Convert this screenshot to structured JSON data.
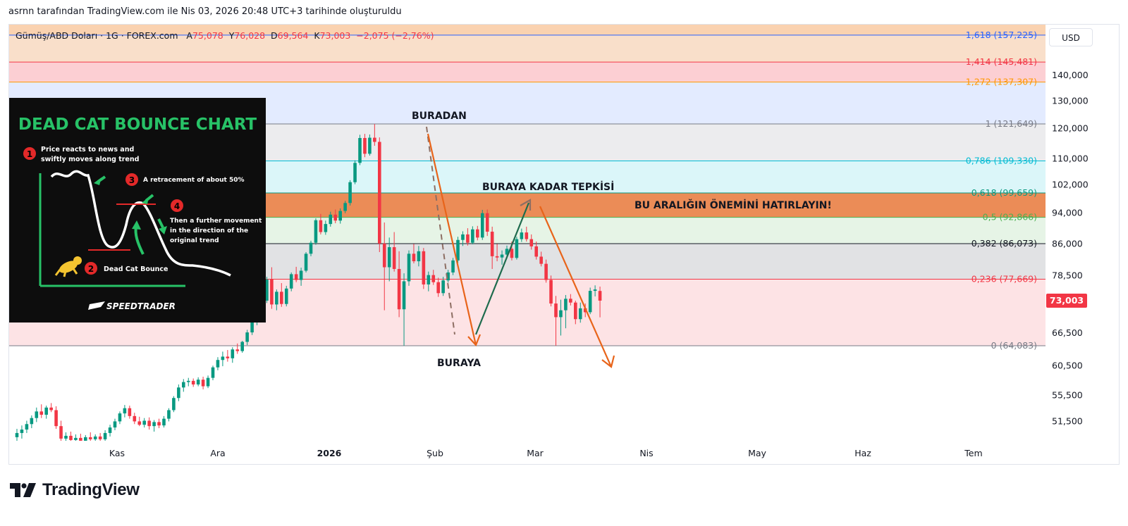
{
  "caption": "asrnn tarafından TradingView.com ile Nis 03, 2026 20:48 UTC+3 tarihinde oluşturuldu",
  "brand": "TradingView",
  "currency_button": "USD",
  "legend": {
    "symbol": "Gümüş/ABD Doları · 1G · FOREX.com",
    "open_label": "A",
    "open": "75,078",
    "high_label": "Y",
    "high": "76,028",
    "low_label": "D",
    "low": "69,564",
    "close_label": "K",
    "close": "73,003",
    "change": "−2,075 (−2,76%)"
  },
  "last_price": "73,003",
  "annotations": {
    "top": "BURADAN",
    "bottom": "BURAYA",
    "reaction": "BURAYA KADAR TEPKİSİ",
    "zone": "BU ARALIĞIN ÖNEMİNİ HATIRLAYIN!"
  },
  "inset": {
    "title": "DEAD CAT BOUNCE CHART",
    "step1": [
      "Price reacts to news and",
      "swiftly moves along trend"
    ],
    "step2": "Dead Cat Bounce",
    "step3": "A retracement of about 50%",
    "step4": [
      "Then a further movement",
      "in the direction of the",
      "original trend"
    ],
    "logo": "SPEEDTRADER",
    "numbers": [
      "1",
      "2",
      "3",
      "4"
    ]
  },
  "chart_data": {
    "type": "candlestick",
    "symbol": "Gümüş/ABD Doları",
    "interval": "1G",
    "y_axis_ticks": [
      "140,000",
      "130,000",
      "120,000",
      "110,000",
      "102,000",
      "94,000",
      "86,000",
      "78,500",
      "66,500",
      "60,500",
      "55,500",
      "51,500"
    ],
    "y_axis_scale": "log",
    "x_axis_ticks": [
      "Kas",
      "Ara",
      "2026",
      "Şub",
      "Mar",
      "Nis",
      "May",
      "Haz",
      "Tem"
    ],
    "fib_levels": [
      {
        "label": "0 (64,083)",
        "value": 64083,
        "color": "#787b86"
      },
      {
        "label": "0,236 (77,669)",
        "value": 77669,
        "color": "#f23645"
      },
      {
        "label": "0,382 (86,073)",
        "value": 86073,
        "color": "#131722"
      },
      {
        "label": "0,5 (92,866)",
        "value": 92866,
        "color": "#4caf50"
      },
      {
        "label": "0,618 (99,659)",
        "value": 99659,
        "color": "#089981"
      },
      {
        "label": "0,786 (109,330)",
        "value": 109330,
        "color": "#00bcd4"
      },
      {
        "label": "1 (121,649)",
        "value": 121649,
        "color": "#787b86"
      },
      {
        "label": "1,272 (137,307)",
        "value": 137307,
        "color": "#ff9800"
      },
      {
        "label": "1,414 (145,481)",
        "value": 145481,
        "color": "#f23645"
      },
      {
        "label": "1,618 (157,225)",
        "value": 157225,
        "color": "#2962ff"
      }
    ],
    "candles": [
      {
        "o": 49.2,
        "h": 50.4,
        "l": 48.6,
        "c": 49.8
      },
      {
        "o": 49.8,
        "h": 50.9,
        "l": 49.0,
        "c": 50.3
      },
      {
        "o": 50.3,
        "h": 51.6,
        "l": 49.8,
        "c": 51.1
      },
      {
        "o": 51.1,
        "h": 52.4,
        "l": 50.5,
        "c": 52.0
      },
      {
        "o": 52.0,
        "h": 53.6,
        "l": 51.4,
        "c": 53.0
      },
      {
        "o": 53.0,
        "h": 54.1,
        "l": 52.0,
        "c": 52.5
      },
      {
        "o": 52.5,
        "h": 53.9,
        "l": 51.9,
        "c": 53.6
      },
      {
        "o": 53.6,
        "h": 54.3,
        "l": 52.9,
        "c": 53.2
      },
      {
        "o": 53.2,
        "h": 53.8,
        "l": 50.4,
        "c": 50.8
      },
      {
        "o": 50.8,
        "h": 51.6,
        "l": 48.6,
        "c": 49.0
      },
      {
        "o": 49.0,
        "h": 49.9,
        "l": 48.2,
        "c": 49.4
      },
      {
        "o": 49.4,
        "h": 50.0,
        "l": 48.4,
        "c": 48.8
      },
      {
        "o": 48.8,
        "h": 49.6,
        "l": 48.1,
        "c": 49.1
      },
      {
        "o": 49.1,
        "h": 49.7,
        "l": 48.3,
        "c": 48.7
      },
      {
        "o": 48.7,
        "h": 49.5,
        "l": 48.0,
        "c": 49.2
      },
      {
        "o": 49.2,
        "h": 49.9,
        "l": 48.5,
        "c": 48.9
      },
      {
        "o": 48.9,
        "h": 49.6,
        "l": 48.2,
        "c": 49.3
      },
      {
        "o": 49.3,
        "h": 49.8,
        "l": 48.6,
        "c": 48.9
      },
      {
        "o": 48.9,
        "h": 50.2,
        "l": 48.4,
        "c": 49.8
      },
      {
        "o": 49.8,
        "h": 51.0,
        "l": 49.3,
        "c": 50.6
      },
      {
        "o": 50.6,
        "h": 51.9,
        "l": 50.2,
        "c": 51.5
      },
      {
        "o": 51.5,
        "h": 53.0,
        "l": 51.1,
        "c": 52.7
      },
      {
        "o": 52.7,
        "h": 54.0,
        "l": 52.1,
        "c": 53.5
      },
      {
        "o": 53.5,
        "h": 53.9,
        "l": 51.9,
        "c": 52.3
      },
      {
        "o": 52.3,
        "h": 52.8,
        "l": 51.1,
        "c": 51.5
      },
      {
        "o": 51.5,
        "h": 52.2,
        "l": 50.8,
        "c": 51.0
      },
      {
        "o": 51.0,
        "h": 52.0,
        "l": 50.6,
        "c": 51.6
      },
      {
        "o": 51.6,
        "h": 52.1,
        "l": 50.3,
        "c": 50.8
      },
      {
        "o": 50.8,
        "h": 51.7,
        "l": 50.0,
        "c": 51.4
      },
      {
        "o": 51.4,
        "h": 51.9,
        "l": 50.5,
        "c": 50.9
      },
      {
        "o": 50.9,
        "h": 52.3,
        "l": 50.6,
        "c": 51.9
      },
      {
        "o": 51.9,
        "h": 53.5,
        "l": 51.5,
        "c": 53.2
      },
      {
        "o": 53.2,
        "h": 55.4,
        "l": 52.9,
        "c": 55.1
      },
      {
        "o": 55.1,
        "h": 57.3,
        "l": 54.6,
        "c": 56.8
      },
      {
        "o": 56.8,
        "h": 58.2,
        "l": 56.1,
        "c": 57.7
      },
      {
        "o": 57.7,
        "h": 58.4,
        "l": 57.0,
        "c": 57.9
      },
      {
        "o": 57.9,
        "h": 58.3,
        "l": 56.9,
        "c": 57.3
      },
      {
        "o": 57.3,
        "h": 58.5,
        "l": 57.0,
        "c": 58.1
      },
      {
        "o": 58.1,
        "h": 58.6,
        "l": 56.5,
        "c": 57.0
      },
      {
        "o": 57.0,
        "h": 58.8,
        "l": 56.7,
        "c": 58.4
      },
      {
        "o": 58.4,
        "h": 60.5,
        "l": 58.0,
        "c": 60.2
      },
      {
        "o": 60.2,
        "h": 62.0,
        "l": 59.7,
        "c": 61.5
      },
      {
        "o": 61.5,
        "h": 63.0,
        "l": 60.4,
        "c": 62.1
      },
      {
        "o": 62.1,
        "h": 63.3,
        "l": 61.2,
        "c": 61.8
      },
      {
        "o": 61.8,
        "h": 63.8,
        "l": 61.0,
        "c": 63.4
      },
      {
        "o": 63.4,
        "h": 64.5,
        "l": 62.6,
        "c": 63.1
      },
      {
        "o": 63.1,
        "h": 65.0,
        "l": 62.8,
        "c": 64.8
      },
      {
        "o": 64.8,
        "h": 67.1,
        "l": 64.2,
        "c": 66.6
      },
      {
        "o": 66.6,
        "h": 69.2,
        "l": 66.1,
        "c": 68.7
      },
      {
        "o": 68.7,
        "h": 71.3,
        "l": 68.0,
        "c": 70.8
      },
      {
        "o": 70.8,
        "h": 73.5,
        "l": 70.0,
        "c": 73.0
      },
      {
        "o": 73.0,
        "h": 78.2,
        "l": 72.5,
        "c": 77.6
      },
      {
        "o": 77.6,
        "h": 80.4,
        "l": 71.3,
        "c": 72.2
      },
      {
        "o": 72.2,
        "h": 75.4,
        "l": 71.0,
        "c": 74.9
      },
      {
        "o": 74.9,
        "h": 76.8,
        "l": 71.7,
        "c": 72.3
      },
      {
        "o": 72.3,
        "h": 76.2,
        "l": 71.8,
        "c": 75.6
      },
      {
        "o": 75.6,
        "h": 79.2,
        "l": 75.0,
        "c": 78.8
      },
      {
        "o": 78.8,
        "h": 80.5,
        "l": 77.0,
        "c": 77.5
      },
      {
        "o": 77.5,
        "h": 80.3,
        "l": 76.2,
        "c": 79.6
      },
      {
        "o": 79.6,
        "h": 84.0,
        "l": 79.2,
        "c": 83.6
      },
      {
        "o": 83.6,
        "h": 86.8,
        "l": 83.0,
        "c": 86.3
      },
      {
        "o": 86.3,
        "h": 92.6,
        "l": 85.8,
        "c": 92.1
      },
      {
        "o": 92.1,
        "h": 93.8,
        "l": 88.4,
        "c": 89.0
      },
      {
        "o": 89.0,
        "h": 92.0,
        "l": 88.3,
        "c": 91.1
      },
      {
        "o": 91.1,
        "h": 94.4,
        "l": 90.4,
        "c": 93.6
      },
      {
        "o": 93.6,
        "h": 95.0,
        "l": 91.3,
        "c": 92.0
      },
      {
        "o": 92.0,
        "h": 95.3,
        "l": 91.2,
        "c": 94.6
      },
      {
        "o": 94.6,
        "h": 97.4,
        "l": 94.0,
        "c": 96.8
      },
      {
        "o": 96.8,
        "h": 103.4,
        "l": 96.1,
        "c": 102.8
      },
      {
        "o": 102.8,
        "h": 109.5,
        "l": 102.2,
        "c": 108.7
      },
      {
        "o": 108.7,
        "h": 117.9,
        "l": 108.0,
        "c": 116.8
      },
      {
        "o": 116.8,
        "h": 118.2,
        "l": 110.5,
        "c": 111.6
      },
      {
        "o": 111.6,
        "h": 118.0,
        "l": 111.0,
        "c": 116.9
      },
      {
        "o": 116.9,
        "h": 121.6,
        "l": 114.2,
        "c": 115.5
      },
      {
        "o": 115.5,
        "h": 117.0,
        "l": 84.0,
        "c": 86.1
      },
      {
        "o": 86.1,
        "h": 91.5,
        "l": 71.0,
        "c": 80.4
      },
      {
        "o": 80.4,
        "h": 87.6,
        "l": 77.2,
        "c": 85.2
      },
      {
        "o": 85.2,
        "h": 89.0,
        "l": 79.4,
        "c": 80.0
      },
      {
        "o": 80.0,
        "h": 84.2,
        "l": 69.6,
        "c": 71.2
      },
      {
        "o": 71.2,
        "h": 79.0,
        "l": 64.1,
        "c": 77.2
      },
      {
        "o": 77.2,
        "h": 84.4,
        "l": 76.2,
        "c": 83.6
      },
      {
        "o": 83.6,
        "h": 86.0,
        "l": 81.3,
        "c": 81.8
      },
      {
        "o": 81.8,
        "h": 85.5,
        "l": 80.6,
        "c": 84.2
      },
      {
        "o": 84.2,
        "h": 85.0,
        "l": 75.5,
        "c": 76.5
      },
      {
        "o": 76.5,
        "h": 79.4,
        "l": 75.0,
        "c": 78.6
      },
      {
        "o": 78.6,
        "h": 79.8,
        "l": 76.4,
        "c": 77.0
      },
      {
        "o": 77.0,
        "h": 78.0,
        "l": 73.8,
        "c": 74.6
      },
      {
        "o": 74.6,
        "h": 78.2,
        "l": 74.0,
        "c": 77.4
      },
      {
        "o": 77.4,
        "h": 79.8,
        "l": 76.9,
        "c": 79.2
      },
      {
        "o": 79.2,
        "h": 82.6,
        "l": 78.6,
        "c": 82.0
      },
      {
        "o": 82.0,
        "h": 87.8,
        "l": 81.4,
        "c": 87.0
      },
      {
        "o": 87.0,
        "h": 89.2,
        "l": 85.5,
        "c": 88.4
      },
      {
        "o": 88.4,
        "h": 90.0,
        "l": 85.6,
        "c": 86.3
      },
      {
        "o": 86.3,
        "h": 90.5,
        "l": 85.9,
        "c": 89.7
      },
      {
        "o": 89.7,
        "h": 90.6,
        "l": 86.9,
        "c": 87.6
      },
      {
        "o": 87.6,
        "h": 94.9,
        "l": 87.0,
        "c": 94.0
      },
      {
        "o": 94.0,
        "h": 95.0,
        "l": 88.0,
        "c": 89.1
      },
      {
        "o": 89.1,
        "h": 90.4,
        "l": 80.0,
        "c": 83.0
      },
      {
        "o": 83.0,
        "h": 86.0,
        "l": 81.8,
        "c": 82.7
      },
      {
        "o": 82.7,
        "h": 84.4,
        "l": 81.0,
        "c": 83.4
      },
      {
        "o": 83.4,
        "h": 85.6,
        "l": 82.6,
        "c": 84.8
      },
      {
        "o": 84.8,
        "h": 86.6,
        "l": 82.0,
        "c": 82.6
      },
      {
        "o": 82.6,
        "h": 87.8,
        "l": 82.2,
        "c": 87.2
      },
      {
        "o": 87.2,
        "h": 89.9,
        "l": 86.5,
        "c": 88.9
      },
      {
        "o": 88.9,
        "h": 90.4,
        "l": 86.6,
        "c": 87.2
      },
      {
        "o": 87.2,
        "h": 88.4,
        "l": 84.6,
        "c": 85.4
      },
      {
        "o": 85.4,
        "h": 86.6,
        "l": 82.2,
        "c": 82.9
      },
      {
        "o": 82.9,
        "h": 84.1,
        "l": 80.6,
        "c": 81.2
      },
      {
        "o": 81.2,
        "h": 82.2,
        "l": 76.9,
        "c": 77.5
      },
      {
        "o": 77.5,
        "h": 78.5,
        "l": 71.8,
        "c": 72.4
      },
      {
        "o": 72.4,
        "h": 74.0,
        "l": 64.1,
        "c": 69.6
      },
      {
        "o": 69.6,
        "h": 73.2,
        "l": 66.0,
        "c": 71.0
      },
      {
        "o": 71.0,
        "h": 74.2,
        "l": 67.4,
        "c": 73.4
      },
      {
        "o": 73.4,
        "h": 74.4,
        "l": 72.0,
        "c": 72.6
      },
      {
        "o": 72.6,
        "h": 73.0,
        "l": 68.2,
        "c": 69.2
      },
      {
        "o": 69.2,
        "h": 72.6,
        "l": 68.5,
        "c": 71.4
      },
      {
        "o": 71.4,
        "h": 72.4,
        "l": 69.6,
        "c": 70.6
      },
      {
        "o": 70.6,
        "h": 75.8,
        "l": 70.2,
        "c": 75.1
      },
      {
        "o": 75.1,
        "h": 76.3,
        "l": 73.9,
        "c": 75.4
      },
      {
        "o": 75.078,
        "h": 76.028,
        "l": 69.564,
        "c": 73.003
      }
    ]
  },
  "colors": {
    "up": "#089981",
    "down": "#f23645",
    "arrow": "#e8641a"
  }
}
